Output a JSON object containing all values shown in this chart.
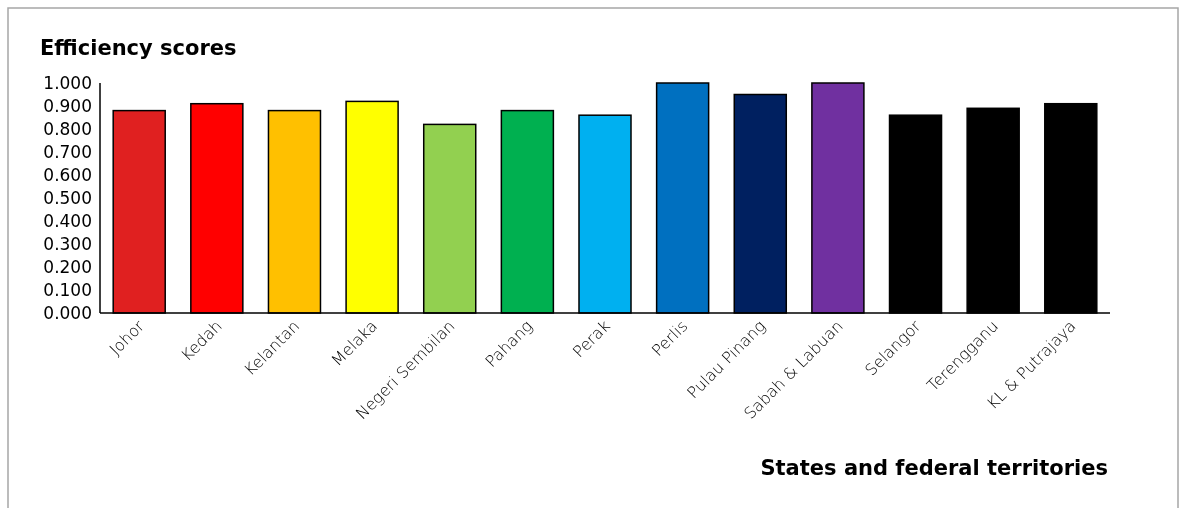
{
  "chart_data": {
    "type": "bar",
    "ylabel": "Efficiency scores",
    "xlabel": "States and federal territories",
    "categories": [
      "Johor",
      "Kedah",
      "Kelantan",
      "Melaka",
      "Negeri Sembilan",
      "Pahang",
      "Perak",
      "Perlis",
      "Pulau Pinang",
      "Sabah & Labuan",
      "Selangor",
      "Terengganu",
      "KL & Putrajaya"
    ],
    "values": [
      0.88,
      0.91,
      0.88,
      0.92,
      0.82,
      0.88,
      0.86,
      1.0,
      0.95,
      1.0,
      0.86,
      0.89,
      0.91
    ],
    "colors": [
      "#e02020",
      "#ff0000",
      "#ffc000",
      "#ffff00",
      "#92d050",
      "#00b050",
      "#00b0f0",
      "#0070c0",
      "#002060",
      "#7030a0",
      "#000000",
      "#000000",
      "#000000"
    ],
    "ylim": [
      0,
      1
    ],
    "yticks": [
      {
        "value": 0,
        "label": "0.000"
      },
      {
        "value": 0.1,
        "label": "0.100"
      },
      {
        "value": 0.2,
        "label": "0.200"
      },
      {
        "value": 0.3,
        "label": "0.300"
      },
      {
        "value": 0.4,
        "label": "0.400"
      },
      {
        "value": 0.5,
        "label": "0.500"
      },
      {
        "value": 0.6,
        "label": "0.600"
      },
      {
        "value": 0.7,
        "label": "0.700"
      },
      {
        "value": 0.8,
        "label": "0.800"
      },
      {
        "value": 0.9,
        "label": "0.900"
      },
      {
        "value": 1.0,
        "label": "1.000"
      }
    ],
    "grid": false
  }
}
